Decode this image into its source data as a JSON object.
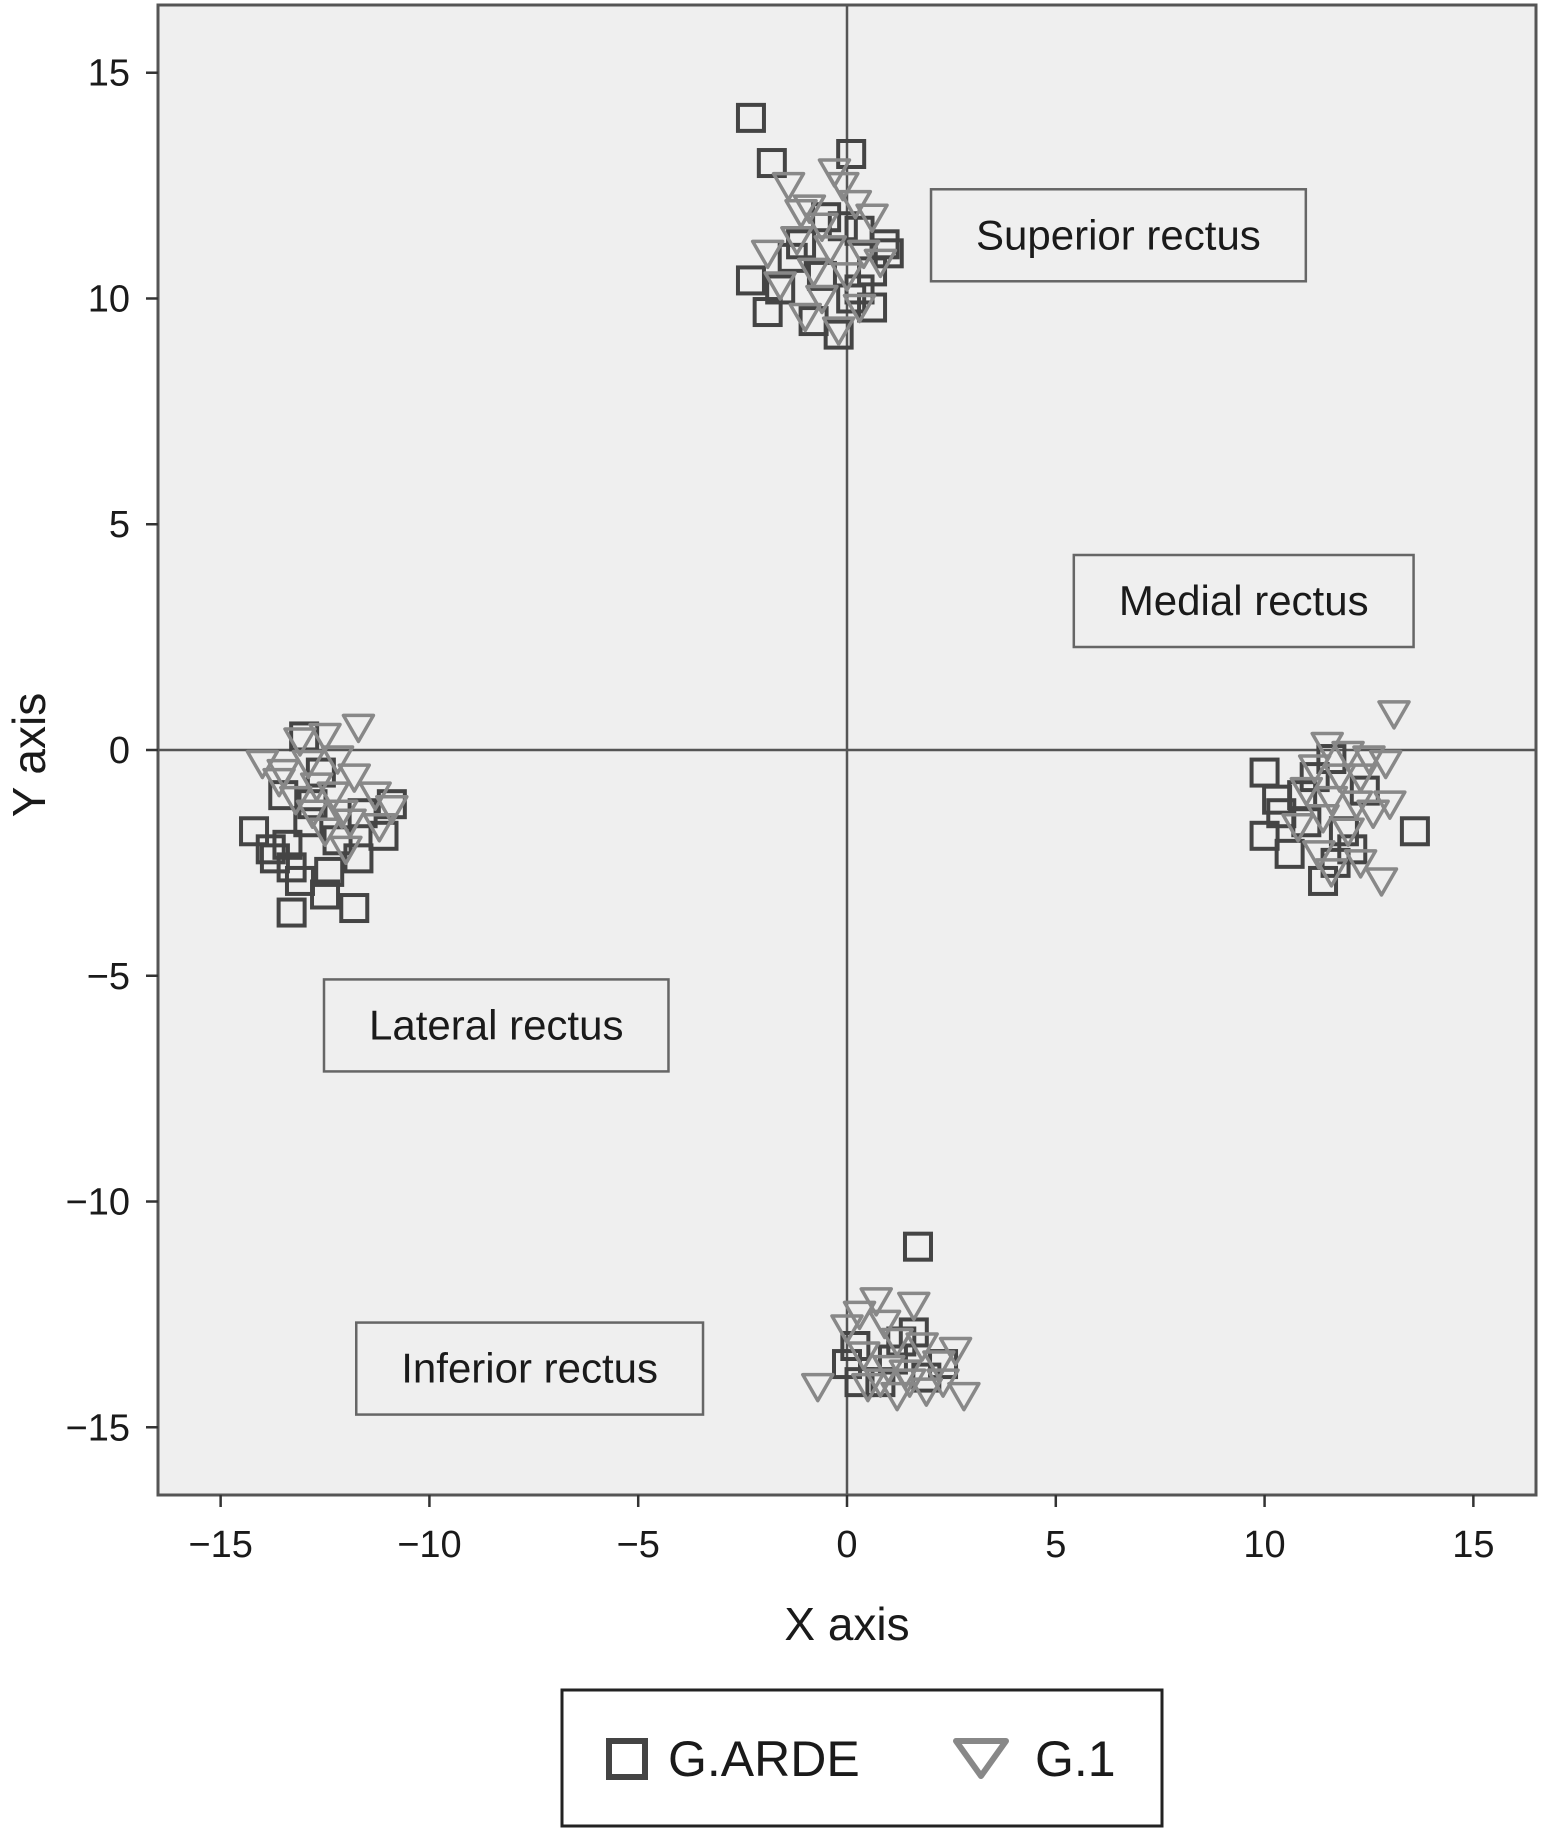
{
  "chart_data": {
    "type": "scatter",
    "title": "",
    "xlabel": "X axis",
    "ylabel": "Y axis",
    "xlim": [
      -16.5,
      16.5
    ],
    "ylim": [
      -16.5,
      16.5
    ],
    "x_ticks": [
      -15,
      -10,
      -5,
      0,
      5,
      10,
      15
    ],
    "y_ticks": [
      -15,
      -10,
      -5,
      0,
      5,
      10,
      15
    ],
    "x_tick_labels": [
      "−15",
      "−10",
      "−5",
      "0",
      "5",
      "10",
      "15"
    ],
    "y_tick_labels": [
      "−15",
      "−10",
      "−5",
      "0",
      "5",
      "10",
      "15"
    ],
    "grid": false,
    "reference_lines": {
      "x": 0,
      "y": 0
    },
    "legend_placement": "bottom-center",
    "colors": {
      "plot_background": "#efefef",
      "frame": "#555555",
      "square_marker": "#444444",
      "triangle_marker": "#888888"
    },
    "annotations": [
      {
        "text": "Superior rectus",
        "x": 6.5,
        "y": 11.4
      },
      {
        "text": "Medial rectus",
        "x": 9.5,
        "y": 3.3
      },
      {
        "text": "Lateral rectus",
        "x": -8.4,
        "y": -6.1
      },
      {
        "text": "Inferior rectus",
        "x": -7.6,
        "y": -13.7
      }
    ],
    "series": [
      {
        "name": "G.ARDE",
        "marker": "square",
        "points": [
          [
            -2.3,
            14.0
          ],
          [
            -1.8,
            13.0
          ],
          [
            0.1,
            13.2
          ],
          [
            -1.1,
            11.2
          ],
          [
            -0.5,
            11.8
          ],
          [
            0.3,
            11.5
          ],
          [
            1.0,
            11.0
          ],
          [
            0.6,
            10.6
          ],
          [
            -2.3,
            10.4
          ],
          [
            -1.6,
            10.2
          ],
          [
            -1.9,
            9.7
          ],
          [
            -0.8,
            9.5
          ],
          [
            -0.2,
            9.2
          ],
          [
            0.1,
            10.0
          ],
          [
            0.6,
            9.8
          ],
          [
            -0.6,
            10.5
          ],
          [
            0.9,
            11.2
          ],
          [
            -1.3,
            10.9
          ],
          [
            0.3,
            10.2
          ],
          [
            -0.1,
            11.6
          ],
          [
            -13.0,
            0.3
          ],
          [
            -12.6,
            -0.5
          ],
          [
            -13.5,
            -1.0
          ],
          [
            -14.2,
            -1.8
          ],
          [
            -13.8,
            -2.2
          ],
          [
            -13.3,
            -2.6
          ],
          [
            -12.9,
            -1.6
          ],
          [
            -12.2,
            -2.0
          ],
          [
            -11.7,
            -2.4
          ],
          [
            -11.1,
            -1.9
          ],
          [
            -10.9,
            -1.2
          ],
          [
            -13.4,
            -2.1
          ],
          [
            -13.7,
            -2.4
          ],
          [
            -12.4,
            -2.7
          ],
          [
            -11.8,
            -3.5
          ],
          [
            -12.5,
            -3.2
          ],
          [
            -13.3,
            -3.6
          ],
          [
            -12.8,
            -1.2
          ],
          [
            -11.6,
            -1.4
          ],
          [
            -13.1,
            -2.9
          ],
          [
            10.0,
            -0.5
          ],
          [
            10.0,
            -1.9
          ],
          [
            10.4,
            -1.4
          ],
          [
            10.9,
            -1.0
          ],
          [
            11.2,
            -0.6
          ],
          [
            10.6,
            -2.3
          ],
          [
            11.4,
            -2.9
          ],
          [
            11.9,
            -1.8
          ],
          [
            12.1,
            -2.2
          ],
          [
            13.6,
            -1.8
          ],
          [
            12.4,
            -0.9
          ],
          [
            11.6,
            -0.2
          ],
          [
            11.0,
            -1.6
          ],
          [
            10.3,
            -1.1
          ],
          [
            11.7,
            -2.5
          ],
          [
            1.7,
            -11.0
          ],
          [
            0.0,
            -13.6
          ],
          [
            0.2,
            -13.2
          ],
          [
            0.8,
            -14.0
          ],
          [
            1.3,
            -13.1
          ],
          [
            1.9,
            -13.9
          ],
          [
            2.3,
            -13.6
          ],
          [
            0.3,
            -14.0
          ],
          [
            1.1,
            -13.5
          ],
          [
            1.6,
            -12.9
          ]
        ]
      },
      {
        "name": "G.1",
        "marker": "triangle-down",
        "points": [
          [
            -1.4,
            12.5
          ],
          [
            -0.3,
            12.8
          ],
          [
            -0.9,
            12.0
          ],
          [
            0.2,
            12.1
          ],
          [
            -0.6,
            11.6
          ],
          [
            0.6,
            11.8
          ],
          [
            -1.9,
            11.0
          ],
          [
            -1.2,
            11.3
          ],
          [
            -0.4,
            11.1
          ],
          [
            0.4,
            11.0
          ],
          [
            -0.8,
            10.6
          ],
          [
            0.0,
            10.5
          ],
          [
            -1.6,
            10.3
          ],
          [
            -0.6,
            10.0
          ],
          [
            0.3,
            9.8
          ],
          [
            -1.0,
            9.6
          ],
          [
            -0.2,
            9.3
          ],
          [
            0.8,
            10.8
          ],
          [
            -0.1,
            12.5
          ],
          [
            -1.1,
            11.9
          ],
          [
            -11.7,
            0.5
          ],
          [
            -12.5,
            0.3
          ],
          [
            -13.1,
            0.2
          ],
          [
            -14.0,
            -0.3
          ],
          [
            -13.5,
            -0.5
          ],
          [
            -12.9,
            -0.3
          ],
          [
            -12.2,
            -0.2
          ],
          [
            -11.8,
            -0.6
          ],
          [
            -11.3,
            -1.0
          ],
          [
            -10.9,
            -1.3
          ],
          [
            -12.7,
            -0.8
          ],
          [
            -13.2,
            -1.1
          ],
          [
            -12.3,
            -1.0
          ],
          [
            -11.9,
            -1.6
          ],
          [
            -12.5,
            -1.8
          ],
          [
            -12.0,
            -2.2
          ],
          [
            -13.6,
            -0.7
          ],
          [
            -12.8,
            -1.4
          ],
          [
            -11.2,
            -1.7
          ],
          [
            -12.1,
            -1.4
          ],
          [
            13.1,
            0.8
          ],
          [
            11.5,
            0.1
          ],
          [
            12.0,
            -0.1
          ],
          [
            12.5,
            -0.2
          ],
          [
            12.9,
            -0.3
          ],
          [
            11.2,
            -0.4
          ],
          [
            11.8,
            -0.6
          ],
          [
            12.3,
            -0.6
          ],
          [
            11.0,
            -0.9
          ],
          [
            11.6,
            -1.1
          ],
          [
            12.2,
            -1.2
          ],
          [
            13.0,
            -1.2
          ],
          [
            11.4,
            -1.5
          ],
          [
            12.6,
            -1.4
          ],
          [
            10.8,
            -1.7
          ],
          [
            12.0,
            -1.8
          ],
          [
            11.3,
            -2.3
          ],
          [
            12.3,
            -2.5
          ],
          [
            11.6,
            -2.7
          ],
          [
            12.8,
            -2.9
          ],
          [
            -0.7,
            -14.1
          ],
          [
            0.0,
            -12.8
          ],
          [
            0.7,
            -12.2
          ],
          [
            1.6,
            -12.3
          ],
          [
            0.3,
            -12.5
          ],
          [
            0.9,
            -12.7
          ],
          [
            1.2,
            -13.1
          ],
          [
            1.8,
            -13.2
          ],
          [
            0.4,
            -13.4
          ],
          [
            1.0,
            -13.7
          ],
          [
            2.2,
            -13.6
          ],
          [
            2.6,
            -13.3
          ],
          [
            1.4,
            -13.8
          ],
          [
            0.8,
            -14.0
          ],
          [
            1.9,
            -14.2
          ],
          [
            2.8,
            -14.3
          ],
          [
            1.5,
            -14.0
          ],
          [
            2.3,
            -14.0
          ],
          [
            0.5,
            -14.1
          ],
          [
            1.2,
            -14.3
          ]
        ]
      }
    ]
  }
}
